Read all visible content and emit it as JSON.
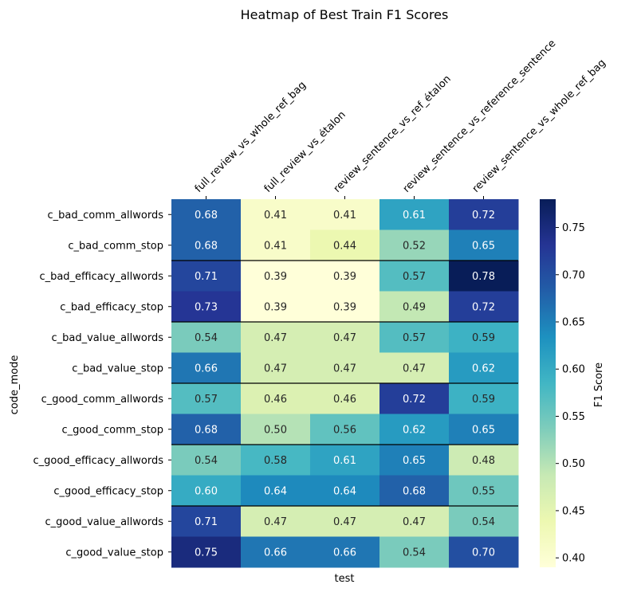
{
  "chart_data": {
    "type": "heatmap",
    "title": "Heatmap of Best Train F1 Scores",
    "xlabel": "test",
    "ylabel": "code_mode",
    "colorbar_label": "F1 Score",
    "colormap": "YlGnBu",
    "vmin": 0.39,
    "vmax": 0.78,
    "colorbar_ticks": [
      0.4,
      0.45,
      0.5,
      0.55,
      0.6,
      0.65,
      0.7,
      0.75
    ],
    "colorbar_tick_labels": [
      "0.40",
      "0.45",
      "0.50",
      "0.55",
      "0.60",
      "0.65",
      "0.70",
      "0.75"
    ],
    "columns": [
      "full_review_vs_whole_ref_bag",
      "full_review_vs_étalon",
      "review_sentence_vs_ref_étalon",
      "review_sentence_vs_reference_sentence",
      "review_sentence_vs_whole_ref_bag"
    ],
    "rows": [
      "c_bad_comm_allwords",
      "c_bad_comm_stop",
      "c_bad_efficacy_allwords",
      "c_bad_efficacy_stop",
      "c_bad_value_allwords",
      "c_bad_value_stop",
      "c_good_comm_allwords",
      "c_good_comm_stop",
      "c_good_efficacy_allwords",
      "c_good_efficacy_stop",
      "c_good_value_allwords",
      "c_good_value_stop"
    ],
    "values": [
      [
        0.68,
        0.41,
        0.41,
        0.61,
        0.72
      ],
      [
        0.68,
        0.41,
        0.44,
        0.52,
        0.65
      ],
      [
        0.71,
        0.39,
        0.39,
        0.57,
        0.78
      ],
      [
        0.73,
        0.39,
        0.39,
        0.49,
        0.72
      ],
      [
        0.54,
        0.47,
        0.47,
        0.57,
        0.59
      ],
      [
        0.66,
        0.47,
        0.47,
        0.47,
        0.62
      ],
      [
        0.57,
        0.46,
        0.46,
        0.72,
        0.59
      ],
      [
        0.68,
        0.5,
        0.56,
        0.62,
        0.65
      ],
      [
        0.54,
        0.58,
        0.61,
        0.65,
        0.48
      ],
      [
        0.6,
        0.64,
        0.64,
        0.68,
        0.55
      ],
      [
        0.71,
        0.47,
        0.47,
        0.47,
        0.54
      ],
      [
        0.75,
        0.66,
        0.66,
        0.54,
        0.7
      ]
    ],
    "value_labels": [
      [
        "0.68",
        "0.41",
        "0.41",
        "0.61",
        "0.72"
      ],
      [
        "0.68",
        "0.41",
        "0.44",
        "0.52",
        "0.65"
      ],
      [
        "0.71",
        "0.39",
        "0.39",
        "0.57",
        "0.78"
      ],
      [
        "0.73",
        "0.39",
        "0.39",
        "0.49",
        "0.72"
      ],
      [
        "0.54",
        "0.47",
        "0.47",
        "0.57",
        "0.59"
      ],
      [
        "0.66",
        "0.47",
        "0.47",
        "0.47",
        "0.62"
      ],
      [
        "0.57",
        "0.46",
        "0.46",
        "0.72",
        "0.59"
      ],
      [
        "0.68",
        "0.50",
        "0.56",
        "0.62",
        "0.65"
      ],
      [
        "0.54",
        "0.58",
        "0.61",
        "0.65",
        "0.48"
      ],
      [
        "0.60",
        "0.64",
        "0.64",
        "0.68",
        "0.55"
      ],
      [
        "0.71",
        "0.47",
        "0.47",
        "0.47",
        "0.54"
      ],
      [
        "0.75",
        "0.66",
        "0.66",
        "0.54",
        "0.70"
      ]
    ],
    "group_separators_after_rows": [
      2,
      4,
      6,
      8,
      10
    ]
  }
}
